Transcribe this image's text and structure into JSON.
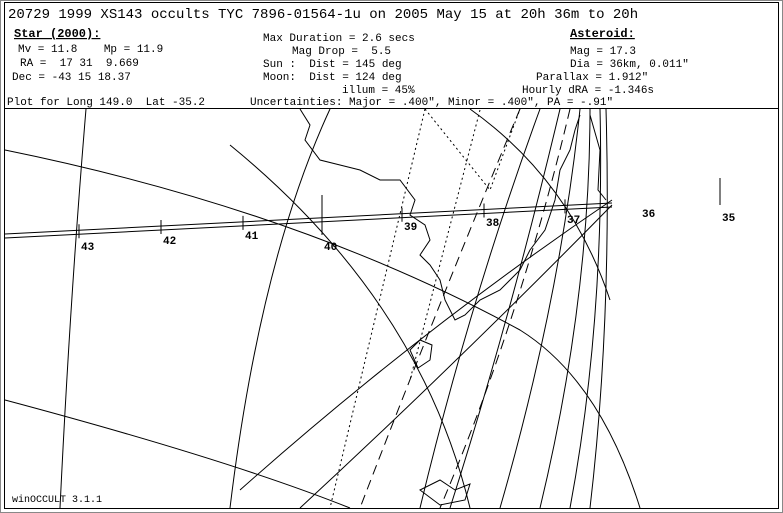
{
  "header": {
    "title": "20729 1999 XS143 occults TYC 7896-01564-1u on 2005 May 15 at 20h 36m to 20h"
  },
  "star": {
    "heading": "Star (2000):",
    "lines": [
      "Mv = 11.8    Mp = 11.9",
      "RA =  17 31  9.669",
      "Dec = -43 15 18.37"
    ]
  },
  "plot_location": "Plot for Long 149.0  Lat -35.2",
  "event": {
    "lines": [
      "Max Duration = 2.6 secs",
      "Mag Drop =  5.5",
      "Sun :  Dist = 145 deg",
      "Moon:  Dist = 124 deg",
      "illum = 45%"
    ]
  },
  "uncertainties": "Uncertainties: Major = .400\", Minor = .400\", PA = -.91\"",
  "asteroid": {
    "heading": "Asteroid:",
    "lines": [
      "Mag = 17.3",
      "Dia = 36km, 0.011\"",
      "Parallax = 1.912\"",
      "Hourly dRA = -1.346s"
    ]
  },
  "time_labels": [
    "43",
    "42",
    "41",
    "40",
    "39",
    "38",
    "37",
    "36",
    "35"
  ],
  "footer": "winOCCULT 3.1.1"
}
